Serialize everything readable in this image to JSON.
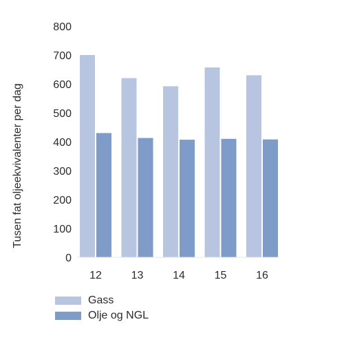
{
  "chart_data": {
    "type": "bar",
    "categories": [
      "12",
      "13",
      "14",
      "15",
      "16"
    ],
    "series": [
      {
        "name": "Gass",
        "values": [
          700,
          620,
          592,
          657,
          630
        ],
        "color": "#b7c5e0"
      },
      {
        "name": "Olje og NGL",
        "values": [
          430,
          413,
          407,
          410,
          408
        ],
        "color": "#7f9bc7"
      }
    ],
    "ylabel": "Tusen fat oljeekvivalenter per dag",
    "yticks": [
      0,
      100,
      200,
      300,
      400,
      500,
      600,
      700,
      800
    ],
    "ylim": [
      0,
      800
    ],
    "grid": false,
    "legend_position": "bottom-left"
  }
}
